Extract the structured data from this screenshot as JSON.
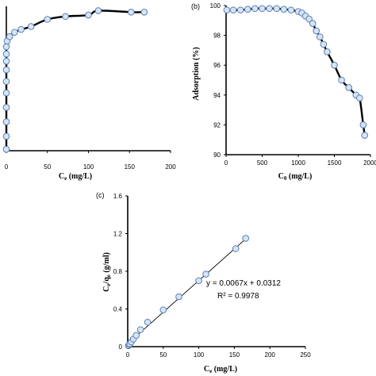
{
  "chart_data": [
    {
      "id": "a",
      "type": "scatter",
      "panel_label": "",
      "title": "",
      "xlabel": {
        "main": "C",
        "sub": "e",
        "unit": " (mg/L)"
      },
      "ylabel": null,
      "xlim": [
        0,
        200
      ],
      "ylim": [
        0,
        100
      ],
      "xticks": [
        "0",
        "50",
        "100",
        "150",
        "200"
      ],
      "yticks": [],
      "series": [
        {
          "x": [
            0,
            0,
            0,
            0,
            0,
            0,
            0,
            0,
            0,
            0,
            1,
            4,
            10,
            18,
            30,
            50,
            72,
            100,
            112,
            152,
            168
          ],
          "y": [
            1,
            10,
            20,
            30,
            40,
            48,
            56,
            62,
            67,
            72,
            76,
            79,
            82,
            84,
            86,
            91,
            93,
            94,
            97,
            96,
            96
          ],
          "curve": true
        }
      ]
    },
    {
      "id": "b",
      "type": "scatter",
      "panel_label": "(b)",
      "title": "",
      "xlabel": {
        "main": "C",
        "sub": "0",
        "unit": " (mg/L)"
      },
      "ylabel": {
        "text": "Adsorption (%)"
      },
      "xlim": [
        0,
        2000
      ],
      "ylim": [
        90,
        100
      ],
      "xticks": [
        "0",
        "500",
        "1000",
        "1500",
        "2000"
      ],
      "yticks": [
        "90",
        "92",
        "94",
        "96",
        "98",
        "100"
      ],
      "series": [
        {
          "x": [
            10,
            100,
            200,
            300,
            400,
            500,
            600,
            700,
            800,
            900,
            1000,
            1050,
            1100,
            1150,
            1200,
            1250,
            1300,
            1350,
            1400,
            1500,
            1600,
            1700,
            1800,
            1850,
            1900,
            1920
          ],
          "y": [
            99.7,
            99.7,
            99.7,
            99.75,
            99.8,
            99.8,
            99.8,
            99.8,
            99.75,
            99.7,
            99.6,
            99.5,
            99.3,
            99.1,
            98.8,
            98.3,
            97.9,
            97.4,
            96.9,
            96.0,
            95.0,
            94.5,
            94.0,
            93.8,
            92.0,
            91.3
          ],
          "curve": true
        }
      ]
    },
    {
      "id": "c",
      "type": "scatter",
      "panel_label": "(c)",
      "title": "",
      "xlabel": {
        "main": "C",
        "sub": "e",
        "unit": " (mg/L)"
      },
      "ylabel": {
        "main": "C",
        "sub1": "e",
        "mid": "/q",
        "sub2": "e",
        "unit": " (g/ml)"
      },
      "xlim": [
        0,
        250
      ],
      "ylim": [
        0,
        1.6
      ],
      "xticks": [
        "0",
        "50",
        "100",
        "150",
        "200",
        "250"
      ],
      "yticks": [
        "0",
        "0.4",
        "0.8",
        "1.2",
        "1.6"
      ],
      "series": [
        {
          "x": [
            1,
            2,
            3,
            5,
            8,
            12,
            18,
            28,
            50,
            72,
            100,
            110,
            152,
            166
          ],
          "y": [
            0.01,
            0.02,
            0.03,
            0.05,
            0.08,
            0.12,
            0.18,
            0.26,
            0.39,
            0.53,
            0.7,
            0.77,
            1.04,
            1.15
          ],
          "curve": false
        }
      ],
      "fit": {
        "slope": 0.0067,
        "intercept": 0.0312,
        "x_range": [
          0,
          166
        ]
      },
      "annotations": [
        "y = 0.0067x + 0.0312",
        "R² = 0.9978"
      ]
    }
  ],
  "style": {
    "marker_fill": "#d5e5f7",
    "marker_stroke": "#5b7fb0",
    "line": "#000000"
  }
}
